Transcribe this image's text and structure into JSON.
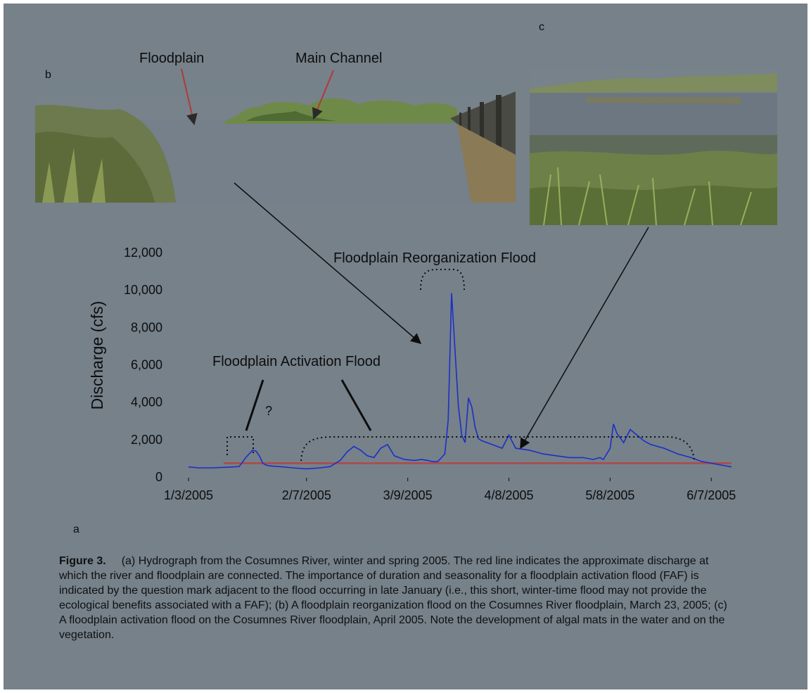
{
  "panel_labels": {
    "a": "a",
    "b": "b",
    "c": "c"
  },
  "photo_b_labels": {
    "floodplain": "Floodplain",
    "main_channel": "Main Channel"
  },
  "chart_data": {
    "type": "line",
    "title": "",
    "xlabel": "",
    "ylabel": "Discharge (cfs)",
    "ylim": [
      0,
      12000
    ],
    "yticks": [
      0,
      2000,
      4000,
      6000,
      8000,
      10000,
      12000
    ],
    "ytick_labels": [
      "0",
      "2,000",
      "4,000",
      "6,000",
      "8,000",
      "10,000",
      "12,000"
    ],
    "xlim": [
      "2005-01-03",
      "2005-06-13"
    ],
    "xtick_labels": [
      "1/3/2005",
      "2/7/2005",
      "3/9/2005",
      "4/8/2005",
      "5/8/2005",
      "6/7/2005"
    ],
    "grid": false,
    "connection_threshold_cfs": 700,
    "series": [
      {
        "color": "#1c2fc8",
        "x": [
          "2005-01-03",
          "2005-01-06",
          "2005-01-10",
          "2005-01-14",
          "2005-01-18",
          "2005-01-20",
          "2005-01-22",
          "2005-01-23",
          "2005-01-24",
          "2005-01-25",
          "2005-01-26",
          "2005-01-27",
          "2005-01-28",
          "2005-01-30",
          "2005-02-03",
          "2005-02-07",
          "2005-02-11",
          "2005-02-14",
          "2005-02-17",
          "2005-02-19",
          "2005-02-21",
          "2005-02-23",
          "2005-02-25",
          "2005-02-27",
          "2005-03-01",
          "2005-03-03",
          "2005-03-05",
          "2005-03-08",
          "2005-03-11",
          "2005-03-13",
          "2005-03-15",
          "2005-03-16",
          "2005-03-17",
          "2005-03-18",
          "2005-03-19",
          "2005-03-20",
          "2005-03-21",
          "2005-03-22",
          "2005-03-23",
          "2005-03-24",
          "2005-03-25",
          "2005-03-26",
          "2005-03-27",
          "2005-03-28",
          "2005-03-29",
          "2005-03-30",
          "2005-03-31",
          "2005-04-03",
          "2005-04-06",
          "2005-04-08",
          "2005-04-10",
          "2005-04-14",
          "2005-04-18",
          "2005-04-22",
          "2005-04-26",
          "2005-04-30",
          "2005-05-03",
          "2005-05-05",
          "2005-05-06",
          "2005-05-07",
          "2005-05-08",
          "2005-05-09",
          "2005-05-10",
          "2005-05-12",
          "2005-05-14",
          "2005-05-16",
          "2005-05-18",
          "2005-05-20",
          "2005-05-24",
          "2005-05-28",
          "2005-06-01",
          "2005-06-04",
          "2005-06-07",
          "2005-06-10",
          "2005-06-13"
        ],
        "y": [
          500,
          450,
          450,
          480,
          520,
          1000,
          1400,
          1350,
          1100,
          700,
          600,
          560,
          540,
          520,
          450,
          400,
          450,
          520,
          850,
          1300,
          1600,
          1400,
          1100,
          1000,
          1500,
          1700,
          1100,
          900,
          850,
          900,
          850,
          800,
          780,
          800,
          1000,
          1200,
          3000,
          9800,
          6800,
          3800,
          2200,
          1800,
          4200,
          3700,
          2600,
          2000,
          1900,
          1700,
          1500,
          2200,
          1500,
          1400,
          1200,
          1100,
          1000,
          1000,
          900,
          1000,
          900,
          1200,
          1500,
          2800,
          2300,
          1800,
          2500,
          2200,
          1900,
          1700,
          1500,
          1200,
          1000,
          800,
          700,
          600,
          500
        ]
      }
    ]
  },
  "annotations": {
    "reorganization": "Floodplain Reorganization Flood",
    "activation": "Floodplain Activation Flood",
    "question_mark": "?"
  },
  "caption": {
    "figure": "Figure 3.",
    "text": "(a) Hydrograph from the Cosumnes River, winter and spring 2005. The red line indicates the approximate discharge at which the river and floodplain are connected. The importance of duration and seasonality for a floodplain activation flood (FAF) is indicated by the question mark adjacent to the flood occurring in late January (i.e., this short, winter-time flood may not provide the ecological benefits associated with a FAF); (b) A floodplain reorganization flood on the Cosumnes River floodplain, March 23, 2005; (c) A floodplain activation flood on the Cosumnes River floodplain, April 2005. Note the development of algal mats in the water and on the vegetation."
  }
}
